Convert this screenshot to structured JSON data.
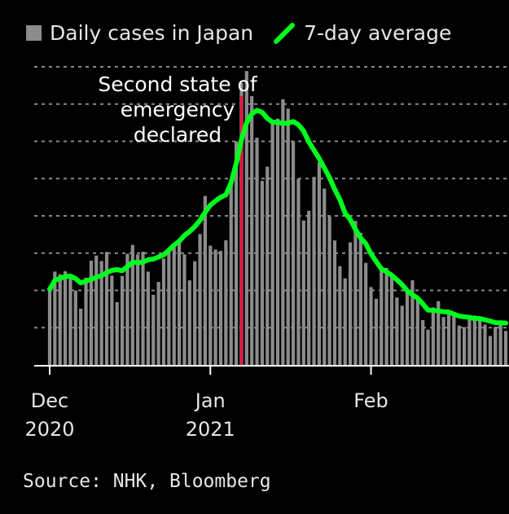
{
  "legend": {
    "bars_label": "Daily cases in Japan",
    "line_label": "7-day average"
  },
  "annotation": {
    "lines": [
      "Second state of",
      "emergency",
      "declared"
    ],
    "date": "2021-01-07"
  },
  "source": "Source: NHK, Bloomberg",
  "colors": {
    "background": "#000000",
    "bars": "#8c8c8c",
    "line": "#00ff1e",
    "marker": "#ff0a3c",
    "grid": "#8a8a8a",
    "text": "#e6e6e6"
  },
  "chart_data": {
    "type": "bar",
    "title": "",
    "xlabel": "",
    "ylabel": "",
    "x_start": "2020-12-01",
    "x_end": "2021-02-27",
    "x_ticks": [
      {
        "date": "2020-12-01",
        "label": [
          "Dec",
          "2020"
        ]
      },
      {
        "date": "2021-01-01",
        "label": [
          "Jan",
          "2021"
        ]
      },
      {
        "date": "2021-02-01",
        "label": [
          "Feb",
          ""
        ]
      }
    ],
    "ylim": [
      0,
      8000
    ],
    "y_grid": [
      1000,
      2000,
      3000,
      4000,
      5000,
      6000,
      7000,
      8000
    ],
    "y_tick_labels_shown": false,
    "grid": true,
    "legend_position": "top",
    "series": [
      {
        "name": "Daily cases in Japan",
        "kind": "bar",
        "values": [
          2031,
          2505,
          2433,
          2515,
          2430,
          1995,
          1510,
          2340,
          2797,
          2935,
          2789,
          3032,
          2396,
          1682,
          2389,
          2983,
          3220,
          2965,
          3038,
          2505,
          1881,
          2227,
          2857,
          3104,
          3262,
          3298,
          2968,
          2270,
          2785,
          3513,
          4534,
          3200,
          3097,
          3059,
          3344,
          4959,
          6001,
          7570,
          7886,
          7212,
          6096,
          4938,
          5320,
          6527,
          6611,
          7130,
          6877,
          6006,
          4999,
          3875,
          4135,
          5045,
          5431,
          4733,
          3981,
          3341,
          2649,
          2323,
          3289,
          3864,
          3547,
          2737,
          2089,
          1774,
          2551,
          2604,
          2380,
          1810,
          1587,
          1968,
          2270,
          1781,
          1203,
          948,
          1543,
          1711,
          1286,
          1365,
          1318,
          1055,
          1016,
          1300,
          1328,
          1266,
          1083,
          778,
          1024,
          1183,
          912
        ]
      },
      {
        "name": "7-day average",
        "kind": "line",
        "values": [
          2031,
          2268,
          2323,
          2371,
          2383,
          2318,
          2202,
          2247,
          2294,
          2355,
          2397,
          2475,
          2538,
          2557,
          2530,
          2639,
          2754,
          2744,
          2760,
          2822,
          2841,
          2896,
          2953,
          3079,
          3216,
          3321,
          3475,
          3580,
          3712,
          3877,
          4096,
          4288,
          4400,
          4500,
          4567,
          4884,
          5413,
          6048,
          6498,
          6736,
          6833,
          6779,
          6615,
          6515,
          6509,
          6481,
          6489,
          6531,
          6443,
          6278,
          5985,
          5765,
          5543,
          5281,
          5030,
          4711,
          4434,
          4075,
          3902,
          3634,
          3406,
          3253,
          2983,
          2775,
          2578,
          2499,
          2409,
          2284,
          2155,
          1986,
          1882,
          1793,
          1637,
          1471,
          1469,
          1448,
          1427,
          1421,
          1364,
          1311,
          1295,
          1274,
          1248,
          1245,
          1210,
          1176,
          1135,
          1129,
          1123
        ]
      }
    ]
  }
}
